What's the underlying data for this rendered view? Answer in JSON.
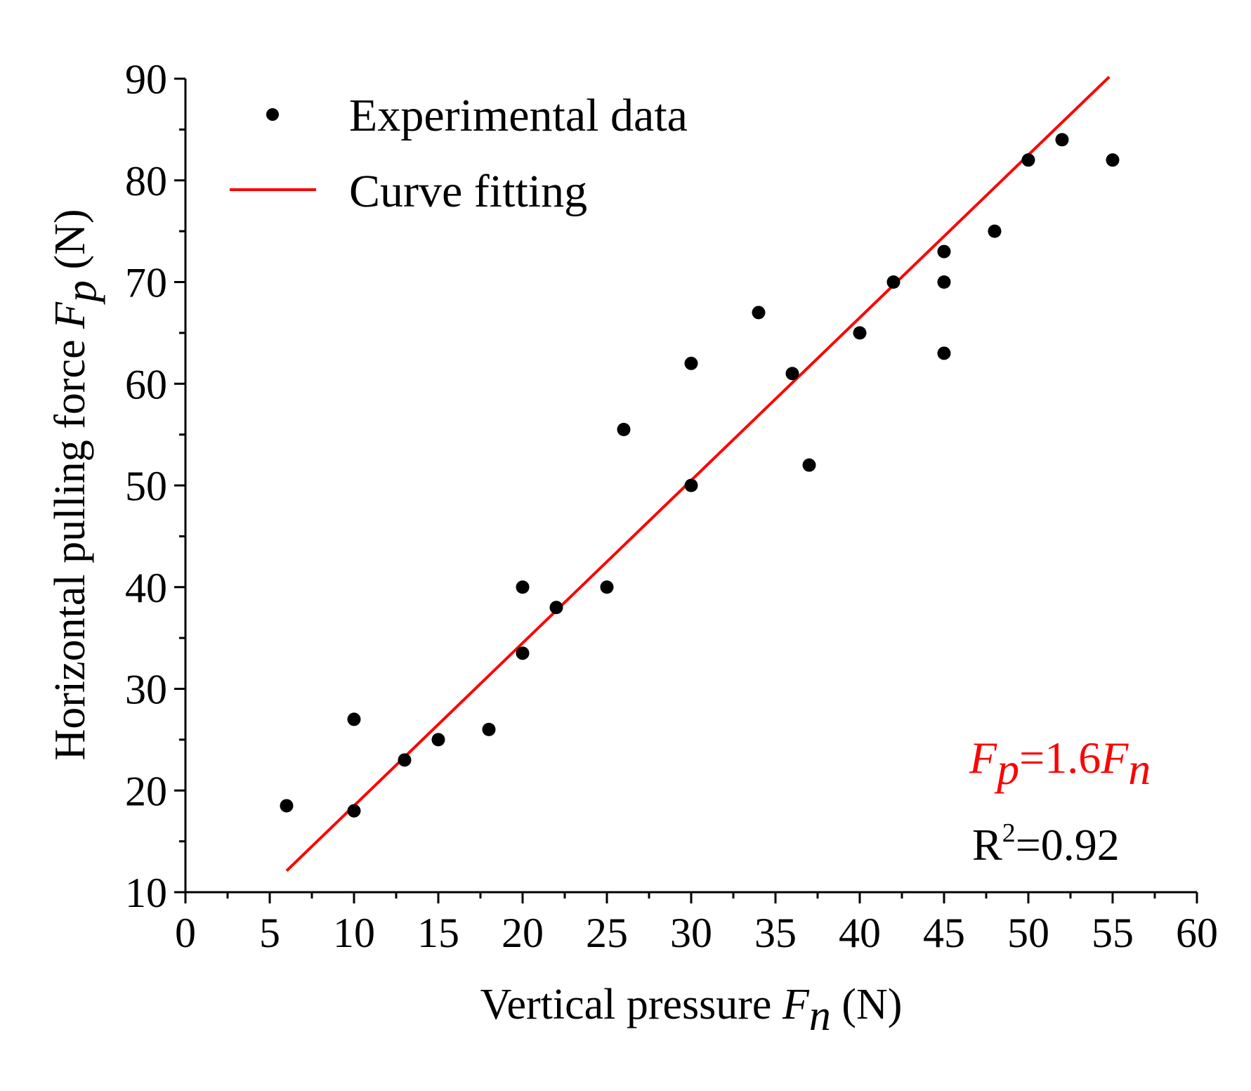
{
  "chart_data": {
    "type": "scatter",
    "xlabel": "Vertical pressure",
    "xlabel_symbol": "F",
    "xlabel_subscript": "n",
    "xlabel_unit": "(N)",
    "ylabel": "Horizontal pulling force",
    "ylabel_symbol": "F",
    "ylabel_subscript": "p",
    "ylabel_unit": "(N)",
    "xlim": [
      0,
      60
    ],
    "ylim": [
      10,
      90
    ],
    "xticks": [
      0,
      5,
      10,
      15,
      20,
      25,
      30,
      35,
      40,
      45,
      50,
      55,
      60
    ],
    "yticks": [
      10,
      20,
      30,
      40,
      50,
      60,
      70,
      80,
      90
    ],
    "grid": false,
    "legend_position": "top-left",
    "series": [
      {
        "name": "Experimental data",
        "kind": "points",
        "color": "#000000",
        "points": [
          [
            6,
            18.5
          ],
          [
            10,
            27
          ],
          [
            10,
            18
          ],
          [
            13,
            23
          ],
          [
            15,
            25
          ],
          [
            18,
            26
          ],
          [
            20,
            40
          ],
          [
            20,
            33.5
          ],
          [
            22,
            38
          ],
          [
            25,
            40
          ],
          [
            26,
            55.5
          ],
          [
            30,
            62
          ],
          [
            30,
            50
          ],
          [
            34,
            67
          ],
          [
            36,
            61
          ],
          [
            37,
            52
          ],
          [
            40,
            65
          ],
          [
            42,
            70
          ],
          [
            45,
            73
          ],
          [
            45,
            70
          ],
          [
            45,
            63
          ],
          [
            48,
            75
          ],
          [
            50,
            82
          ],
          [
            52,
            84
          ],
          [
            55,
            82
          ]
        ]
      },
      {
        "name": "Curve fitting",
        "kind": "line",
        "color": "#ff0000",
        "slope": 1.6,
        "x_range": [
          6,
          54.8
        ]
      }
    ],
    "annotations": {
      "equation_lhs": "F",
      "equation_lhs_sub": "p",
      "equation_mid": "=1.6",
      "equation_rhs": "F",
      "equation_rhs_sub": "n",
      "equation_color": "#ff0000",
      "r2_base": "R",
      "r2_sup": "2",
      "r2_value": "=0.92"
    }
  }
}
